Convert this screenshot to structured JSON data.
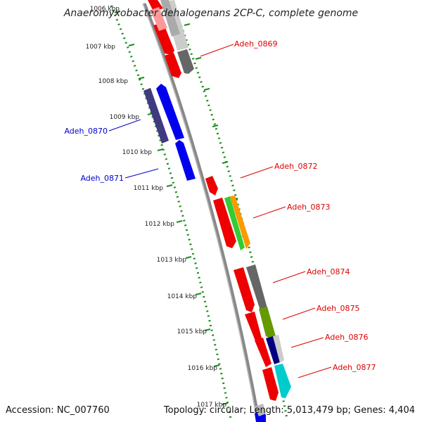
{
  "title": "Anaeromyxobacter dehalogenans 2CP-C, complete genome",
  "accession": "Accession: NC_007760",
  "topology": "Topology: circular; Length: 5,013,479 bp; Genes: 4,404",
  "kbp_labels": [
    "1006 kbp",
    "1007 kbp",
    "1008 kbp",
    "1009 kbp",
    "1010 kbp",
    "1011 kbp",
    "1012 kbp",
    "1013 kbp",
    "1014 kbp",
    "1015 kbp",
    "1016 kbp",
    "1017 kbp"
  ],
  "gene_labels": {
    "adeh_0869": "Adeh_0869",
    "adeh_0870": "Adeh_0870",
    "adeh_0871": "Adeh_0871",
    "adeh_0872": "Adeh_0872",
    "adeh_0873": "Adeh_0873",
    "adeh_0874": "Adeh_0874",
    "adeh_0875": "Adeh_0875",
    "adeh_0876": "Adeh_0876",
    "adeh_0877": "Adeh_0877"
  },
  "colors": {
    "reverse_strand_label": "#0000cc",
    "forward_strand_label": "#dd0000",
    "gc_skew_dots": "#1a8c1a",
    "backbone": "#777777"
  }
}
